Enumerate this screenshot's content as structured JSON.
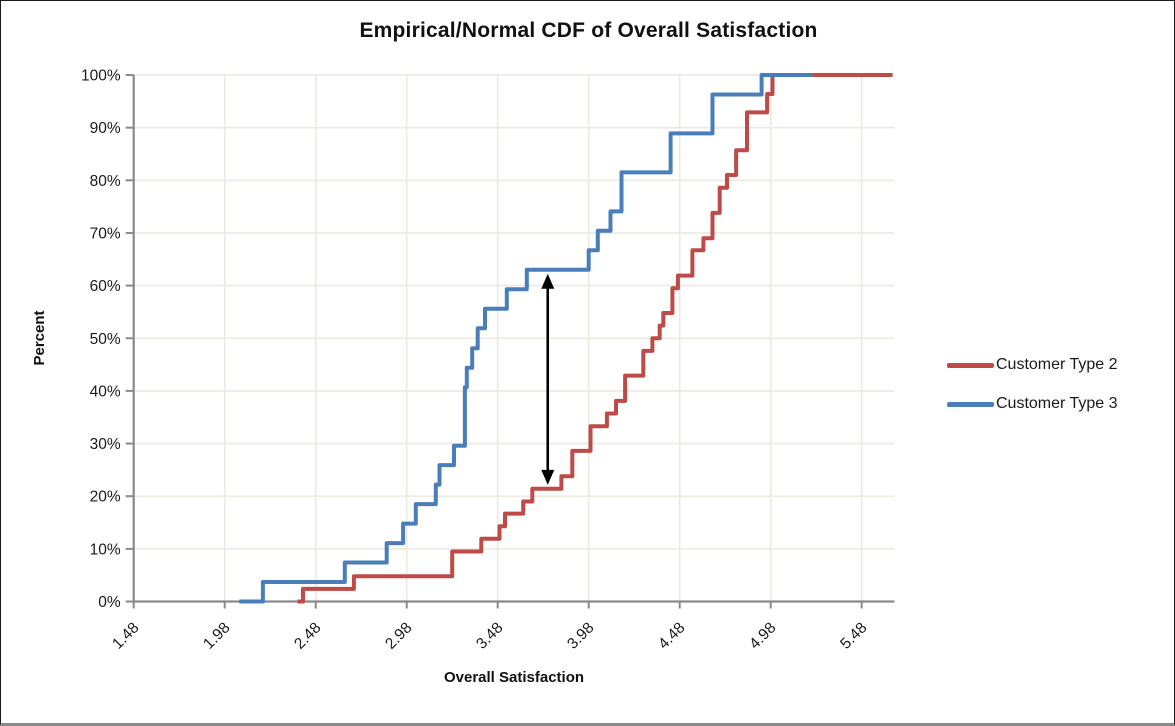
{
  "chart_data": {
    "type": "line",
    "subtype": "empirical-cdf-step",
    "title": "Empirical/Normal CDF of Overall Satisfaction",
    "xlabel": "Overall Satisfaction",
    "ylabel": "Percent",
    "xlim": [
      1.48,
      5.66
    ],
    "ylim": [
      0,
      100
    ],
    "grid": true,
    "legend_position": "right",
    "x_tick_values": [
      1.48,
      1.98,
      2.48,
      2.98,
      3.48,
      3.98,
      4.48,
      4.98,
      5.48
    ],
    "x_tick_labels": [
      "1.48",
      "1.98",
      "2.48",
      "2.98",
      "3.48",
      "3.98",
      "4.48",
      "4.98",
      "5.48"
    ],
    "y_tick_values": [
      0,
      10,
      20,
      30,
      40,
      50,
      60,
      70,
      80,
      90,
      100
    ],
    "y_tick_labels": [
      "0%",
      "10%",
      "20%",
      "30%",
      "40%",
      "50%",
      "60%",
      "70%",
      "80%",
      "90%",
      "100%"
    ],
    "series": [
      {
        "name": "Customer Type 2",
        "color": "#be4b48",
        "start_x": 2.38,
        "end_x": 5.65,
        "steps": [
          [
            2.41,
            2.4
          ],
          [
            2.69,
            4.8
          ],
          [
            3.23,
            9.5
          ],
          [
            3.39,
            11.9
          ],
          [
            3.49,
            14.3
          ],
          [
            3.52,
            16.7
          ],
          [
            3.62,
            19.0
          ],
          [
            3.67,
            21.4
          ],
          [
            3.83,
            23.8
          ],
          [
            3.89,
            28.6
          ],
          [
            3.99,
            33.3
          ],
          [
            4.08,
            35.7
          ],
          [
            4.13,
            38.1
          ],
          [
            4.18,
            42.9
          ],
          [
            4.28,
            47.6
          ],
          [
            4.33,
            50.0
          ],
          [
            4.37,
            52.4
          ],
          [
            4.39,
            54.8
          ],
          [
            4.44,
            59.5
          ],
          [
            4.47,
            61.9
          ],
          [
            4.55,
            66.7
          ],
          [
            4.61,
            69.0
          ],
          [
            4.66,
            73.8
          ],
          [
            4.7,
            78.6
          ],
          [
            4.74,
            81.0
          ],
          [
            4.79,
            85.7
          ],
          [
            4.85,
            92.9
          ],
          [
            4.96,
            96.4
          ],
          [
            4.99,
            100.0
          ]
        ]
      },
      {
        "name": "Customer Type 3",
        "color": "#4a7ebb",
        "start_x": 2.06,
        "end_x": 5.21,
        "steps": [
          [
            2.19,
            3.7
          ],
          [
            2.64,
            7.4
          ],
          [
            2.87,
            11.1
          ],
          [
            2.96,
            14.8
          ],
          [
            3.03,
            18.5
          ],
          [
            3.14,
            22.2
          ],
          [
            3.16,
            25.9
          ],
          [
            3.24,
            29.6
          ],
          [
            3.3,
            40.7
          ],
          [
            3.31,
            44.4
          ],
          [
            3.34,
            48.1
          ],
          [
            3.37,
            51.9
          ],
          [
            3.41,
            55.6
          ],
          [
            3.53,
            59.3
          ],
          [
            3.64,
            63.0
          ],
          [
            3.98,
            66.7
          ],
          [
            4.03,
            70.4
          ],
          [
            4.1,
            74.1
          ],
          [
            4.16,
            81.5
          ],
          [
            4.43,
            88.9
          ],
          [
            4.66,
            96.3
          ],
          [
            4.93,
            100.0
          ]
        ]
      }
    ],
    "annotation": {
      "type": "vertical-double-arrow",
      "x": 3.755,
      "from_percent": 21.4,
      "to_percent": 63.0,
      "color": "#000000"
    },
    "colors": {
      "gridline": "#ece9e0",
      "axis": "#8a8a8a",
      "tick_label": "#1a1a1a",
      "background": "#ffffff"
    }
  }
}
